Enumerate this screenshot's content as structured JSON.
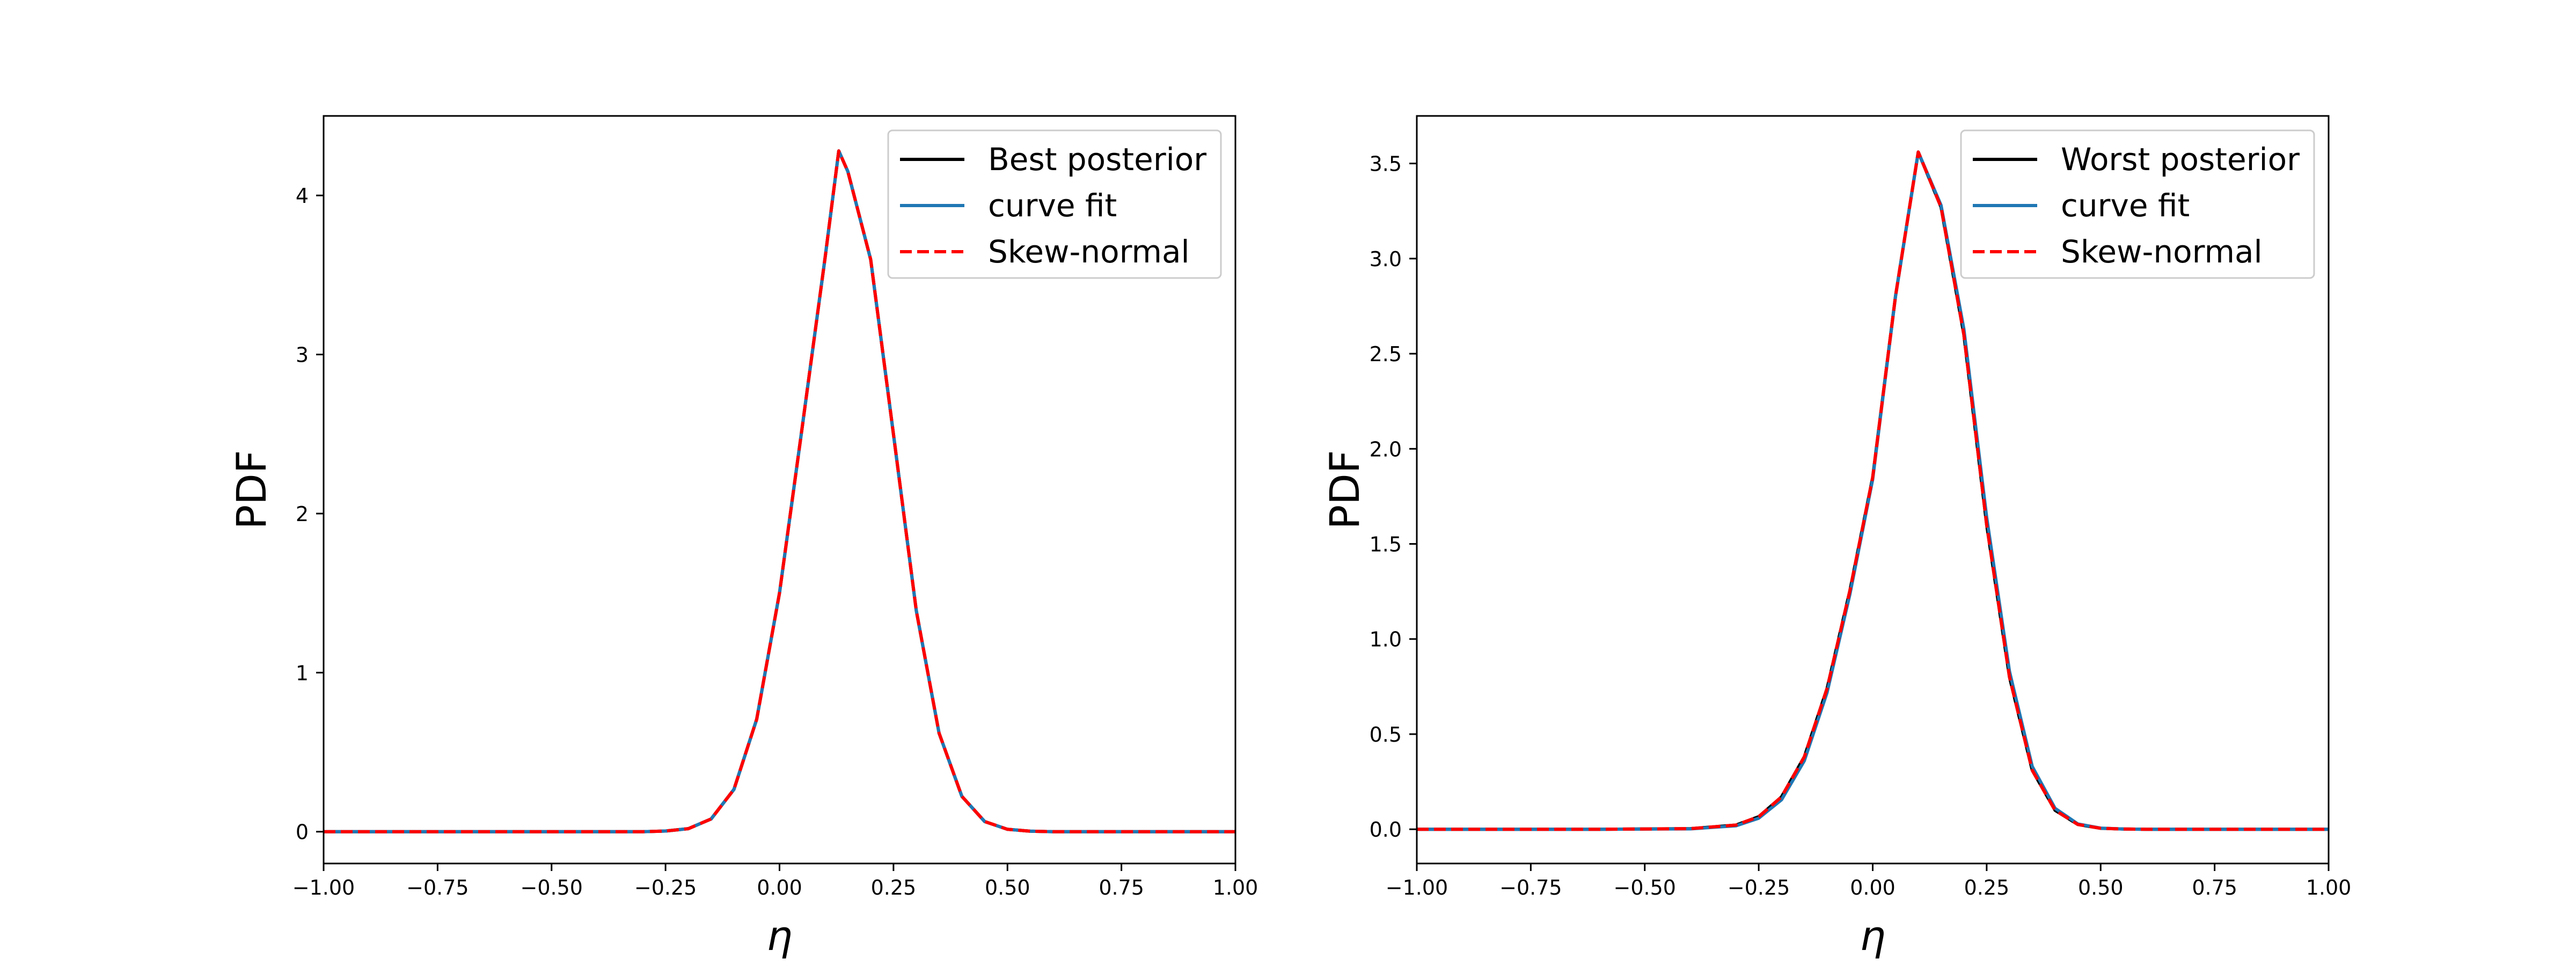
{
  "chart_data": [
    {
      "type": "line",
      "title": "",
      "xlabel": "η",
      "ylabel": "PDF",
      "xlim": [
        -1.0,
        1.0
      ],
      "ylim": [
        -0.2,
        4.5
      ],
      "xticks": [
        -1.0,
        -0.75,
        -0.5,
        -0.25,
        0.0,
        0.25,
        0.5,
        0.75,
        1.0
      ],
      "xtick_labels": [
        "−1.00",
        "−0.75",
        "−0.50",
        "−0.25",
        "0.00",
        "0.25",
        "0.50",
        "0.75",
        "1.00"
      ],
      "yticks": [
        0,
        1,
        2,
        3,
        4
      ],
      "ytick_labels": [
        "0",
        "1",
        "2",
        "3",
        "4"
      ],
      "grid": false,
      "legend_position": "top-right",
      "series": [
        {
          "name": "Best posterior",
          "color": "#000000",
          "style": "solid",
          "x": [
            -1.0,
            -0.8,
            -0.6,
            -0.4,
            -0.3,
            -0.25,
            -0.2,
            -0.15,
            -0.1,
            -0.05,
            0.0,
            0.05,
            0.1,
            0.13,
            0.15,
            0.2,
            0.25,
            0.3,
            0.35,
            0.4,
            0.45,
            0.5,
            0.55,
            0.6,
            0.8,
            1.0
          ],
          "y": [
            0.0,
            0.0,
            0.0,
            0.0,
            0.0,
            0.004,
            0.019,
            0.08,
            0.266,
            0.707,
            1.501,
            2.548,
            3.61,
            4.28,
            4.15,
            3.597,
            2.497,
            1.389,
            0.62,
            0.222,
            0.064,
            0.015,
            0.003,
            0.0,
            0.0,
            0.0
          ]
        },
        {
          "name": "curve fit",
          "color": "#1f77b4",
          "style": "solid",
          "x": [
            -1.0,
            -0.8,
            -0.6,
            -0.4,
            -0.3,
            -0.25,
            -0.2,
            -0.15,
            -0.1,
            -0.05,
            0.0,
            0.05,
            0.1,
            0.13,
            0.15,
            0.2,
            0.25,
            0.3,
            0.35,
            0.4,
            0.45,
            0.5,
            0.55,
            0.6,
            0.8,
            1.0
          ],
          "y": [
            0.0,
            0.0,
            0.0,
            0.0,
            0.0,
            0.004,
            0.019,
            0.08,
            0.266,
            0.707,
            1.501,
            2.548,
            3.61,
            4.28,
            4.15,
            3.597,
            2.497,
            1.389,
            0.62,
            0.222,
            0.064,
            0.015,
            0.003,
            0.0,
            0.0,
            0.0
          ]
        },
        {
          "name": "Skew-normal",
          "color": "#ff0000",
          "style": "dashed",
          "x": [
            -1.0,
            -0.8,
            -0.6,
            -0.4,
            -0.3,
            -0.25,
            -0.2,
            -0.15,
            -0.1,
            -0.05,
            0.0,
            0.05,
            0.1,
            0.13,
            0.15,
            0.2,
            0.25,
            0.3,
            0.35,
            0.4,
            0.45,
            0.5,
            0.55,
            0.6,
            0.8,
            1.0
          ],
          "y": [
            0.0,
            0.0,
            0.0,
            0.0,
            0.0,
            0.004,
            0.019,
            0.08,
            0.266,
            0.707,
            1.501,
            2.548,
            3.61,
            4.28,
            4.15,
            3.597,
            2.497,
            1.389,
            0.62,
            0.222,
            0.064,
            0.015,
            0.003,
            0.0,
            0.0,
            0.0
          ]
        }
      ]
    },
    {
      "type": "line",
      "title": "",
      "xlabel": "η",
      "ylabel": "PDF",
      "xlim": [
        -1.0,
        1.0
      ],
      "ylim": [
        -0.18,
        3.75
      ],
      "xticks": [
        -1.0,
        -0.75,
        -0.5,
        -0.25,
        0.0,
        0.25,
        0.5,
        0.75,
        1.0
      ],
      "xtick_labels": [
        "−1.00",
        "−0.75",
        "−0.50",
        "−0.25",
        "0.00",
        "0.25",
        "0.50",
        "0.75",
        "1.00"
      ],
      "yticks": [
        0.0,
        0.5,
        1.0,
        1.5,
        2.0,
        2.5,
        3.0,
        3.5
      ],
      "ytick_labels": [
        "0.0",
        "0.5",
        "1.0",
        "1.5",
        "2.0",
        "2.5",
        "3.0",
        "3.5"
      ],
      "grid": false,
      "legend_position": "top-right",
      "series": [
        {
          "name": "Worst posterior",
          "color": "#000000",
          "style": "solid",
          "x": [
            -1.0,
            -0.8,
            -0.6,
            -0.4,
            -0.3,
            -0.25,
            -0.2,
            -0.15,
            -0.1,
            -0.05,
            0.0,
            0.05,
            0.1,
            0.15,
            0.2,
            0.25,
            0.3,
            0.35,
            0.4,
            0.45,
            0.5,
            0.55,
            0.6,
            0.8,
            1.0
          ],
          "y": [
            0.0,
            0.0,
            0.0,
            0.003,
            0.022,
            0.066,
            0.17,
            0.381,
            0.741,
            1.254,
            1.85,
            2.803,
            3.56,
            3.27,
            2.6,
            1.6,
            0.8,
            0.31,
            0.1,
            0.025,
            0.005,
            0.001,
            0.0,
            0.0,
            0.0
          ]
        },
        {
          "name": "curve fit",
          "color": "#1f77b4",
          "style": "solid",
          "x": [
            -1.0,
            -0.8,
            -0.6,
            -0.4,
            -0.3,
            -0.25,
            -0.2,
            -0.15,
            -0.1,
            -0.05,
            0.0,
            0.05,
            0.1,
            0.15,
            0.2,
            0.25,
            0.3,
            0.35,
            0.4,
            0.45,
            0.5,
            0.55,
            0.6,
            0.8,
            1.0
          ],
          "y": [
            0.0,
            0.0,
            0.0,
            0.002,
            0.018,
            0.058,
            0.155,
            0.36,
            0.72,
            1.235,
            1.84,
            2.8,
            3.56,
            3.28,
            2.63,
            1.64,
            0.83,
            0.33,
            0.11,
            0.028,
            0.006,
            0.001,
            0.0,
            0.0,
            0.0
          ]
        },
        {
          "name": "Skew-normal",
          "color": "#ff0000",
          "style": "dashed",
          "x": [
            -1.0,
            -0.8,
            -0.6,
            -0.4,
            -0.3,
            -0.25,
            -0.2,
            -0.15,
            -0.1,
            -0.05,
            0.0,
            0.05,
            0.1,
            0.15,
            0.2,
            0.25,
            0.3,
            0.35,
            0.4,
            0.45,
            0.5,
            0.55,
            0.6,
            0.8,
            1.0
          ],
          "y": [
            0.0,
            0.0,
            0.0,
            0.003,
            0.022,
            0.066,
            0.17,
            0.381,
            0.741,
            1.254,
            1.85,
            2.803,
            3.56,
            3.27,
            2.6,
            1.6,
            0.8,
            0.31,
            0.1,
            0.025,
            0.005,
            0.001,
            0.0,
            0.0,
            0.0
          ]
        }
      ]
    }
  ]
}
